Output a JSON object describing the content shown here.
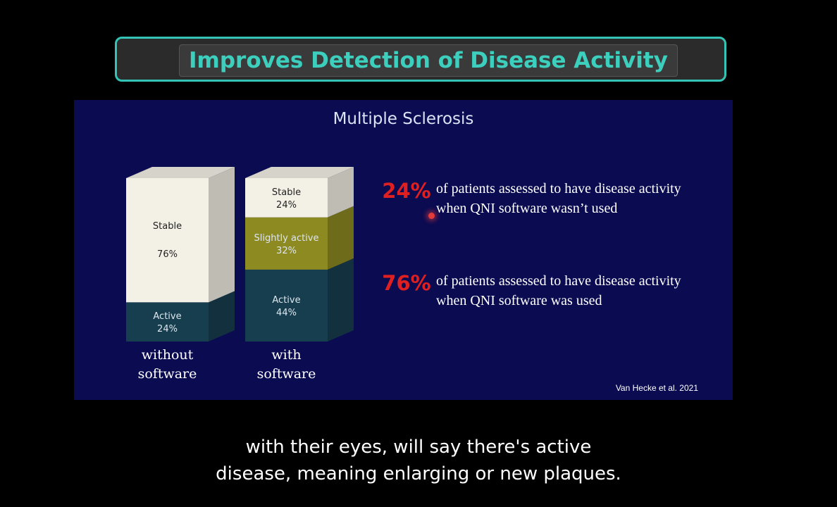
{
  "title": "Improves Detection of Disease Activity",
  "chart_data": {
    "type": "bar",
    "stacked": true,
    "title": "Multiple Sclerosis",
    "categories": [
      "without software",
      "with software"
    ],
    "category_lines": [
      [
        "without",
        "software"
      ],
      [
        "with",
        "software"
      ]
    ],
    "series": [
      {
        "name": "Active",
        "values": [
          24,
          44
        ],
        "color": "#173e4e"
      },
      {
        "name": "Slightly active",
        "values": [
          0,
          32
        ],
        "color": "#8d8a22"
      },
      {
        "name": "Stable",
        "values": [
          76,
          24
        ],
        "color": "#f3f1e6"
      }
    ],
    "ylim": [
      0,
      100
    ],
    "citation": "Van Hecke et al. 2021"
  },
  "stats": [
    {
      "percent": "24%",
      "line1": "of patients assessed to have disease activity",
      "line2": "when QNI software wasn’t used"
    },
    {
      "percent": "76%",
      "line1": "of patients assessed to have disease activity",
      "line2": "when QNI software was used"
    }
  ],
  "caption": {
    "line1": "with their eyes, will say there's active",
    "line2": "disease, meaning enlarging or new plaques."
  }
}
